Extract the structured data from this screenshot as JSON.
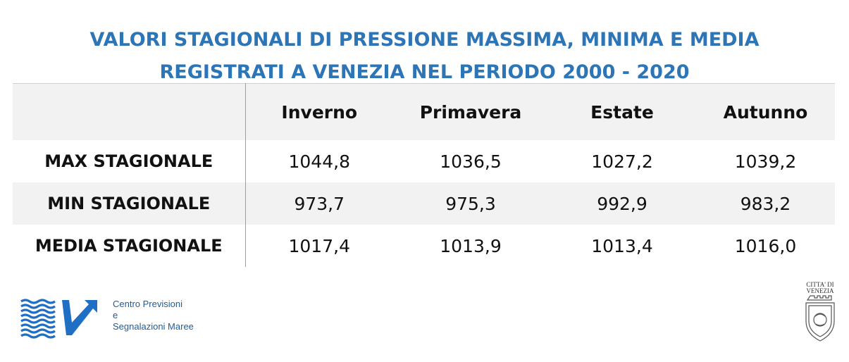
{
  "title": {
    "line1": "VALORI STAGIONALI DI PRESSIONE MASSIMA, MINIMA E MEDIA",
    "line2": "REGISTRATI A VENEZIA NEL PERIODO 2000 - 2020"
  },
  "table": {
    "headers": [
      "",
      "Inverno",
      "Primavera",
      "Estate",
      "Autunno"
    ],
    "rows": [
      {
        "label": "MAX STAGIONALE",
        "values": [
          "1044,8",
          "1036,5",
          "1027,2",
          "1039,2"
        ]
      },
      {
        "label": "MIN STAGIONALE",
        "values": [
          "973,7",
          "975,3",
          "992,9",
          "983,2"
        ]
      },
      {
        "label": "MEDIA STAGIONALE",
        "values": [
          "1017,4",
          "1013,9",
          "1013,4",
          "1016,0"
        ]
      }
    ]
  },
  "logos": {
    "cpsm": {
      "line1": "Centro Previsioni",
      "line2": "e",
      "line3": "Segnalazioni Maree",
      "icon": "waves-arrow-logo",
      "color": "#1f6fc4"
    },
    "venezia": {
      "line1": "CITTA' DI",
      "line2": "VENEZIA",
      "icon": "city-crest-logo"
    }
  },
  "colors": {
    "title": "#2e75b6",
    "band": "#f2f2f2"
  }
}
